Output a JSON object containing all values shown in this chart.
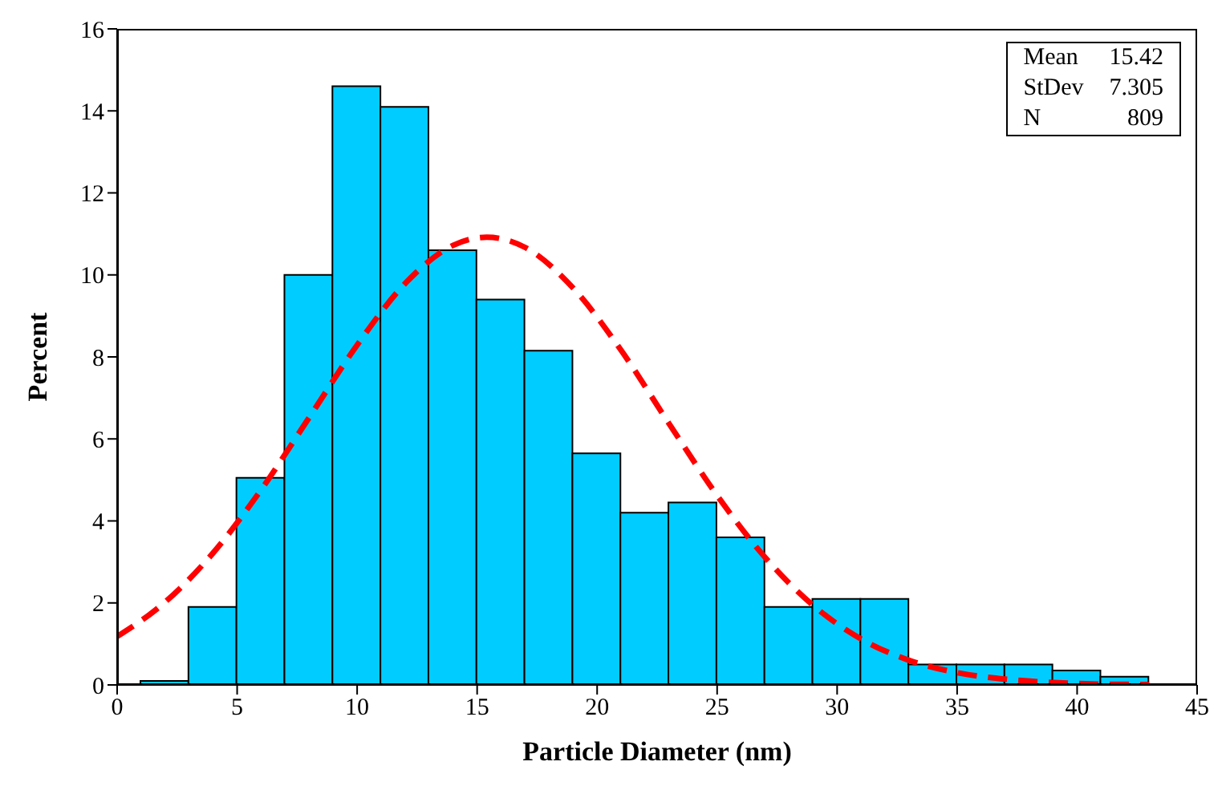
{
  "chart_data": {
    "type": "histogram",
    "xlabel": "Particle Diameter (nm)",
    "ylabel": "Percent",
    "bins": [
      1,
      3,
      5,
      7,
      9,
      11,
      13,
      15,
      17,
      19,
      21,
      23,
      25,
      27,
      29,
      31,
      33,
      35,
      37,
      39,
      41,
      43
    ],
    "values": [
      0.1,
      1.9,
      5.05,
      10,
      14.6,
      14.1,
      10.6,
      9.4,
      8.15,
      5.65,
      4.2,
      4.45,
      3.6,
      1.9,
      2.1,
      2.1,
      0.5,
      0.5,
      0.5,
      0.35,
      0.2
    ],
    "color": "#00ccff",
    "series": [
      {
        "type": "line",
        "color": "#ff0000",
        "line_style": "dashed",
        "x": [
          0,
          2,
          4,
          6,
          8,
          10,
          12,
          14,
          15.4,
          17,
          19,
          21,
          23,
          25,
          27,
          29,
          31,
          33,
          35,
          37,
          39,
          41,
          43
        ],
        "values": [
          1.18,
          2.02,
          3.22,
          4.76,
          6.52,
          8.29,
          9.79,
          10.72,
          10.92,
          10.67,
          9.68,
          8.16,
          6.37,
          4.62,
          3.11,
          1.94,
          1.12,
          0.6,
          0.3,
          0.14,
          0.06,
          0.02,
          0.01
        ]
      }
    ],
    "xlim": [
      0,
      45
    ],
    "xticks": [
      0,
      5,
      10,
      15,
      20,
      25,
      30,
      35,
      40,
      45
    ],
    "ylim": [
      0,
      16
    ],
    "yticks": [
      0,
      2,
      4,
      6,
      8,
      10,
      12,
      14,
      16
    ],
    "annotations": [
      "Mean 15.42",
      "StDev 7.305",
      "N 809"
    ],
    "grid": false
  }
}
